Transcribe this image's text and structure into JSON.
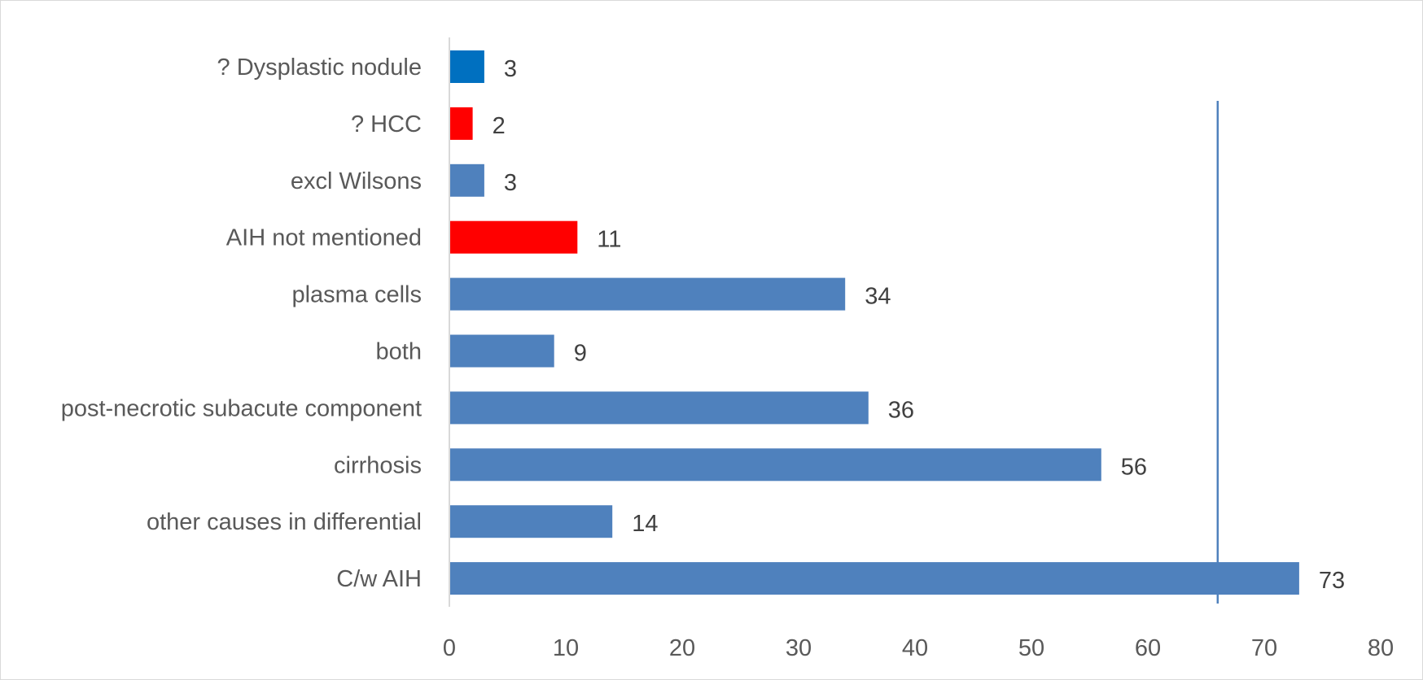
{
  "chart_data": {
    "type": "bar",
    "orientation": "horizontal",
    "title": "",
    "xlabel": "",
    "ylabel": "",
    "categories": [
      "? Dysplastic nodule",
      "? HCC",
      "excl Wilsons",
      "AIH not mentioned",
      "plasma cells",
      "both",
      "post-necrotic subacute component",
      "cirrhosis",
      "other causes in differential",
      "C/w AIH"
    ],
    "values": [
      3,
      2,
      3,
      11,
      34,
      9,
      36,
      56,
      14,
      73
    ],
    "bar_colors": [
      "#0070c0",
      "#ff0000",
      "#4f81bd",
      "#ff0000",
      "#4f81bd",
      "#4f81bd",
      "#4f81bd",
      "#4f81bd",
      "#4f81bd",
      "#4f81bd"
    ],
    "xlim": [
      0,
      80
    ],
    "x_ticks": [
      "0",
      "10",
      "20",
      "30",
      "40",
      "50",
      "60",
      "70",
      "80"
    ],
    "reference_line_x": 66,
    "reference_line_color": "#4f81bd",
    "grid": false,
    "legend": "none"
  }
}
